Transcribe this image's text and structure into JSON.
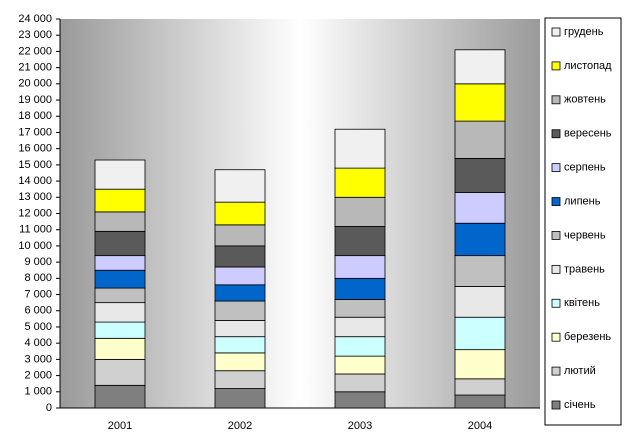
{
  "chart_data": {
    "type": "stacked-bar",
    "categories": [
      "2001",
      "2002",
      "2003",
      "2004"
    ],
    "series": [
      {
        "name": "січень",
        "color": "#7f7f7f",
        "values": [
          1400,
          1200,
          1000,
          800
        ]
      },
      {
        "name": "лютий",
        "color": "#d0d0d0",
        "values": [
          1600,
          1100,
          1100,
          1000
        ]
      },
      {
        "name": "березень",
        "color": "#ffffcc",
        "values": [
          1300,
          1100,
          1100,
          1800
        ]
      },
      {
        "name": "квітень",
        "color": "#ccffff",
        "values": [
          1000,
          1000,
          1200,
          2000
        ]
      },
      {
        "name": "травень",
        "color": "#e8e8e8",
        "values": [
          1200,
          1000,
          1200,
          1900
        ]
      },
      {
        "name": "червень",
        "color": "#c0c0c0",
        "values": [
          900,
          1200,
          1100,
          1900
        ]
      },
      {
        "name": "липень",
        "color": "#0066cc",
        "values": [
          1100,
          1000,
          1300,
          2000
        ]
      },
      {
        "name": "серпень",
        "color": "#ccccff",
        "values": [
          900,
          1100,
          1400,
          1900
        ]
      },
      {
        "name": "вересень",
        "color": "#5a5a5a",
        "values": [
          1500,
          1300,
          1800,
          2100
        ]
      },
      {
        "name": "жовтень",
        "color": "#b8b8b8",
        "values": [
          1200,
          1300,
          1800,
          2300
        ]
      },
      {
        "name": "листопад",
        "color": "#ffff00",
        "values": [
          1400,
          1400,
          1800,
          2300
        ]
      },
      {
        "name": "грудень",
        "color": "#f0f0f0",
        "values": [
          1800,
          2000,
          2400,
          2100
        ]
      }
    ],
    "ylim": [
      0,
      24000
    ],
    "yticks": [
      0,
      {
        "value": 1000,
        "label": "1 000"
      },
      {
        "value": 2000,
        "label": "2 000"
      },
      {
        "value": 3000,
        "label": "3 000"
      },
      {
        "value": 4000,
        "label": "4 000"
      },
      {
        "value": 5000,
        "label": "5 000"
      },
      {
        "value": 6000,
        "label": "6 000"
      },
      {
        "value": 7000,
        "label": "7 000"
      },
      {
        "value": 8000,
        "label": "8 000"
      },
      {
        "value": 9000,
        "label": "9 000"
      },
      {
        "value": 10000,
        "label": "10 000"
      },
      {
        "value": 11000,
        "label": "11 000"
      },
      {
        "value": 12000,
        "label": "12 000"
      },
      {
        "value": 13000,
        "label": "13 000"
      },
      {
        "value": 14000,
        "label": "14 000"
      },
      {
        "value": 15000,
        "label": "15 000"
      },
      {
        "value": 16000,
        "label": "16 000"
      },
      {
        "value": 17000,
        "label": "17 000"
      },
      {
        "value": 18000,
        "label": "18 000"
      },
      {
        "value": 19000,
        "label": "19 000"
      },
      {
        "value": 20000,
        "label": "20 000"
      },
      {
        "value": 21000,
        "label": "21 000"
      },
      {
        "value": 22000,
        "label": "22 000"
      },
      {
        "value": 23000,
        "label": "23 000"
      },
      {
        "value": 24000,
        "label": "24 000"
      }
    ],
    "grid": false,
    "legend": "right"
  }
}
